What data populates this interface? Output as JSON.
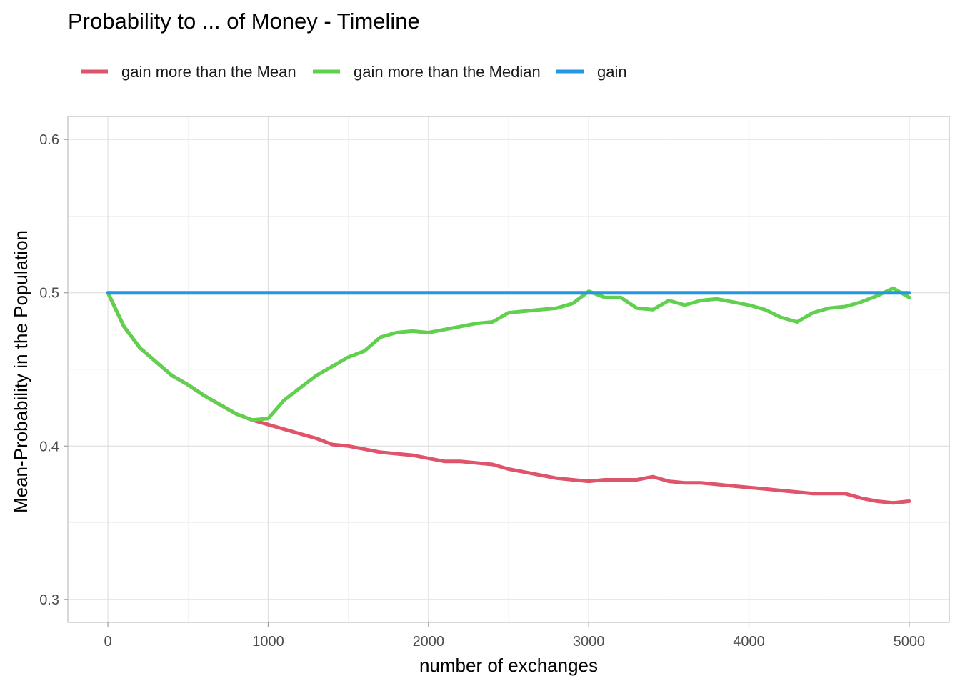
{
  "chart_data": {
    "type": "line",
    "title": "Probability to ... of Money - Timeline",
    "xlabel": "number of exchanges",
    "ylabel": "Mean-Probability in the Population",
    "xlim": [
      -250,
      5250
    ],
    "ylim": [
      0.285,
      0.615
    ],
    "x_ticks": [
      0,
      1000,
      2000,
      3000,
      4000,
      5000
    ],
    "x_tick_labels": [
      "0",
      "1000",
      "2000",
      "3000",
      "4000",
      "5000"
    ],
    "y_ticks": [
      0.3,
      0.4,
      0.5,
      0.6
    ],
    "y_tick_labels": [
      "0.3",
      "0.4",
      "0.5",
      "0.6"
    ],
    "grid": true,
    "legend_position": "top-left",
    "x": [
      0,
      100,
      200,
      300,
      400,
      500,
      600,
      700,
      800,
      900,
      1000,
      1100,
      1200,
      1300,
      1400,
      1500,
      1600,
      1700,
      1800,
      1900,
      2000,
      2100,
      2200,
      2300,
      2400,
      2500,
      2600,
      2700,
      2800,
      2900,
      3000,
      3100,
      3200,
      3300,
      3400,
      3500,
      3600,
      3700,
      3800,
      3900,
      4000,
      4100,
      4200,
      4300,
      4400,
      4500,
      4600,
      4700,
      4800,
      4900,
      5000
    ],
    "series": [
      {
        "name": "gain more than the Mean",
        "color": "#DF536B",
        "values": [
          0.5,
          0.478,
          0.464,
          0.455,
          0.446,
          0.44,
          0.433,
          0.427,
          0.421,
          0.417,
          0.414,
          0.411,
          0.408,
          0.405,
          0.401,
          0.4,
          0.398,
          0.396,
          0.395,
          0.394,
          0.392,
          0.39,
          0.39,
          0.389,
          0.388,
          0.385,
          0.383,
          0.381,
          0.379,
          0.378,
          0.377,
          0.378,
          0.378,
          0.378,
          0.38,
          0.377,
          0.376,
          0.376,
          0.375,
          0.374,
          0.373,
          0.372,
          0.371,
          0.37,
          0.369,
          0.369,
          0.369,
          0.366,
          0.364,
          0.363,
          0.364
        ]
      },
      {
        "name": "gain more than the Median",
        "color": "#61D04F",
        "values": [
          0.5,
          0.478,
          0.464,
          0.455,
          0.446,
          0.44,
          0.433,
          0.427,
          0.421,
          0.417,
          0.418,
          0.43,
          0.438,
          0.446,
          0.452,
          0.458,
          0.462,
          0.471,
          0.474,
          0.475,
          0.474,
          0.476,
          0.478,
          0.48,
          0.481,
          0.487,
          0.488,
          0.489,
          0.49,
          0.493,
          0.501,
          0.497,
          0.497,
          0.49,
          0.489,
          0.495,
          0.492,
          0.495,
          0.496,
          0.494,
          0.492,
          0.489,
          0.484,
          0.481,
          0.487,
          0.49,
          0.491,
          0.494,
          0.498,
          0.503,
          0.497
        ]
      },
      {
        "name": "gain",
        "color": "#2297E6",
        "values": [
          0.5,
          0.5,
          0.5,
          0.5,
          0.5,
          0.5,
          0.5,
          0.5,
          0.5,
          0.5,
          0.5,
          0.5,
          0.5,
          0.5,
          0.5,
          0.5,
          0.5,
          0.5,
          0.5,
          0.5,
          0.5,
          0.5,
          0.5,
          0.5,
          0.5,
          0.5,
          0.5,
          0.5,
          0.5,
          0.5,
          0.5,
          0.5,
          0.5,
          0.5,
          0.5,
          0.5,
          0.5,
          0.5,
          0.5,
          0.5,
          0.5,
          0.5,
          0.5,
          0.5,
          0.5,
          0.5,
          0.5,
          0.5,
          0.5,
          0.5,
          0.5
        ]
      }
    ]
  }
}
